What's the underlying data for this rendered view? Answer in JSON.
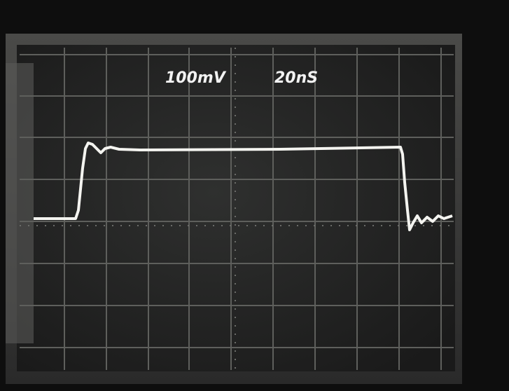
{
  "screen": {
    "volts_per_div": "100mV",
    "time_per_div": "20nS"
  }
}
